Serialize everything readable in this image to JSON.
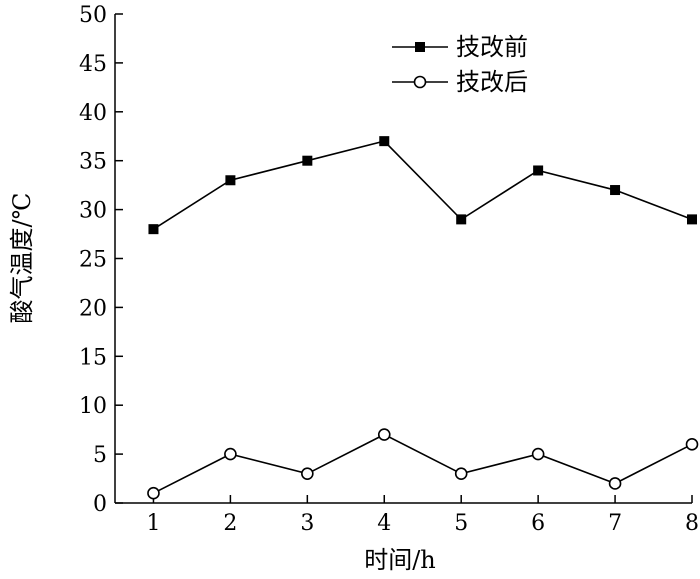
{
  "chart_data": {
    "type": "line",
    "x": [
      1,
      2,
      3,
      4,
      5,
      6,
      7,
      8
    ],
    "series": [
      {
        "name": "技改前",
        "marker": "filled-square",
        "color": "#000000",
        "values": [
          28,
          33,
          35,
          37,
          29,
          34,
          32,
          29
        ]
      },
      {
        "name": "技改后",
        "marker": "open-circle",
        "color": "#000000",
        "values": [
          1,
          5,
          3,
          7,
          3,
          5,
          2,
          6
        ]
      }
    ],
    "title": "",
    "xlabel": "时间/h",
    "ylabel": "酸气温度/℃",
    "xlim": [
      0.5,
      8
    ],
    "ylim": [
      0,
      50
    ],
    "yticks": [
      0,
      5,
      10,
      15,
      20,
      25,
      30,
      35,
      40,
      45,
      50
    ],
    "xticks": [
      1,
      2,
      3,
      4,
      5,
      6,
      7,
      8
    ],
    "grid": false,
    "legend_position": "top-right"
  }
}
